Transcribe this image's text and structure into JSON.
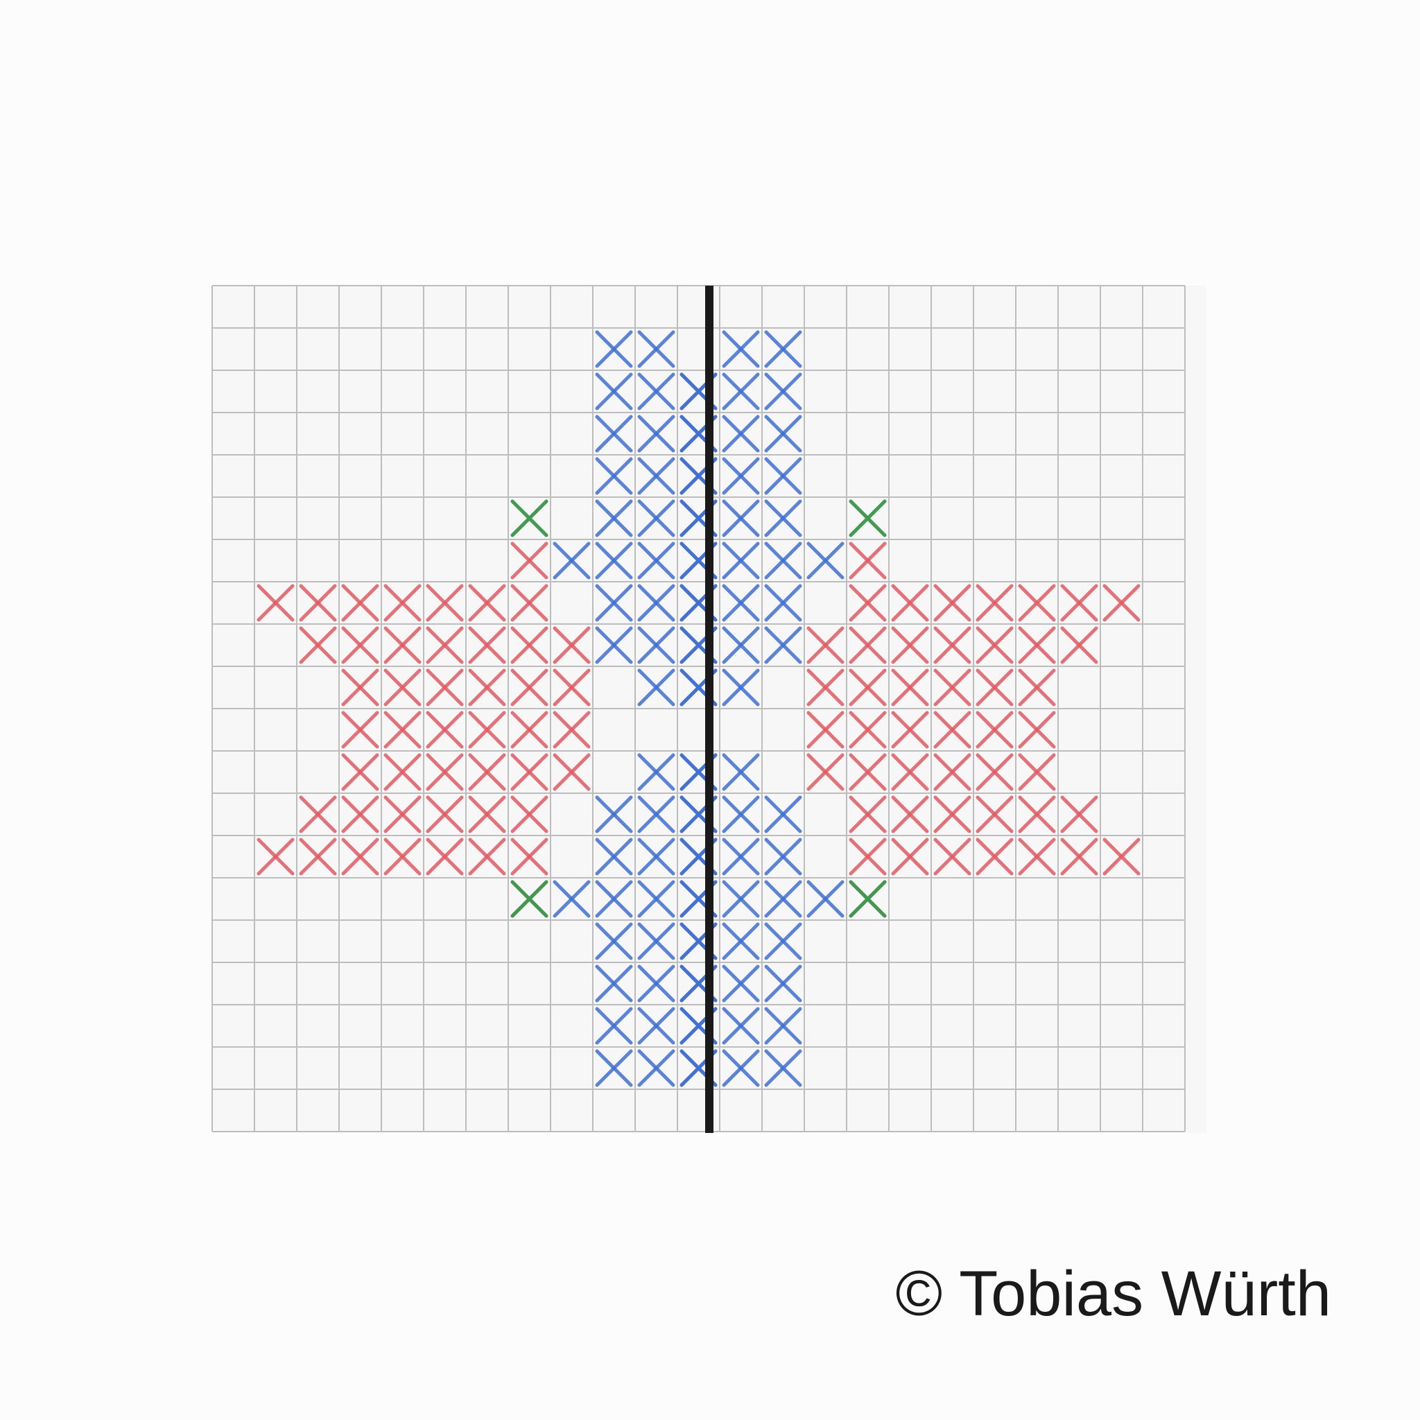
{
  "colors": {
    "background": "#fcfcfc",
    "paper": "#f7f7f7",
    "grid": "#bdbdbd",
    "red": "#e35a62",
    "blue": "#3f6fd4",
    "green": "#3f9a4f",
    "axis": "#1a1a1a"
  },
  "pattern": {
    "grid_cols": 23,
    "grid_rows": 20,
    "mirror_axis_col": 11.5,
    "blue_top_rows": [
      [
        9,
        10
      ],
      [
        9,
        10,
        11
      ],
      [
        9,
        10,
        11
      ],
      [
        9,
        10,
        11
      ],
      [
        9,
        10,
        11
      ],
      [
        8,
        9,
        10,
        11
      ],
      [
        9,
        10,
        11
      ],
      [
        9,
        10,
        11
      ],
      [
        10,
        11
      ]
    ],
    "blue_top_start_row": 1,
    "blue_bottom_rows": [
      [
        10,
        11
      ],
      [
        9,
        10,
        11
      ],
      [
        9,
        10,
        11
      ],
      [
        8,
        9,
        10,
        11
      ],
      [
        9,
        10,
        11
      ],
      [
        9,
        10,
        11
      ],
      [
        9,
        10,
        11
      ],
      [
        9,
        10,
        11
      ]
    ],
    "blue_bottom_start_row": 11,
    "red_rows": [
      [
        7
      ],
      [
        1,
        2,
        3,
        4,
        5,
        6,
        7
      ],
      [
        2,
        3,
        4,
        5,
        6,
        7,
        8
      ],
      [
        3,
        4,
        5,
        6,
        7,
        8
      ],
      [
        3,
        4,
        5,
        6,
        7,
        8
      ],
      [
        3,
        4,
        5,
        6,
        7,
        8
      ],
      [
        2,
        3,
        4,
        5,
        6,
        7
      ],
      [
        1,
        2,
        3,
        4,
        5,
        6,
        7
      ],
      [
        7
      ]
    ],
    "red_start_row": 6,
    "green_marks": [
      [
        7,
        5
      ],
      [
        7,
        14
      ]
    ]
  },
  "copyright": "© Tobias Würth"
}
